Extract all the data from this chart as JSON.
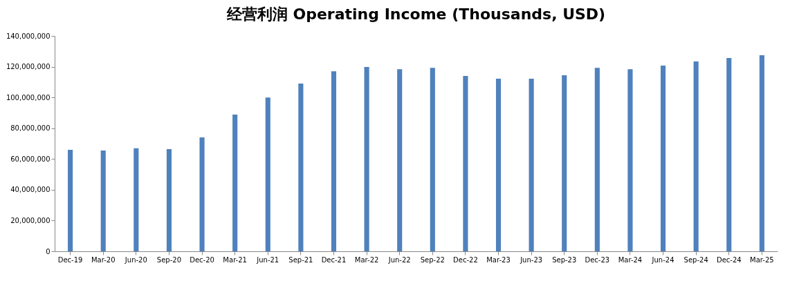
{
  "chart_data": {
    "type": "bar",
    "title": "经营利润 Operating Income (Thousands, USD)",
    "categories": [
      "Dec-19",
      "Mar-20",
      "Jun-20",
      "Sep-20",
      "Dec-20",
      "Mar-21",
      "Jun-21",
      "Sep-21",
      "Dec-21",
      "Mar-22",
      "Jun-22",
      "Sep-22",
      "Dec-22",
      "Mar-23",
      "Jun-23",
      "Sep-23",
      "Dec-23",
      "Mar-24",
      "Jun-24",
      "Sep-24",
      "Dec-24",
      "Mar-25"
    ],
    "values": [
      66000000,
      65500000,
      67000000,
      66400000,
      74000000,
      88800000,
      100000000,
      109000000,
      117000000,
      119800000,
      118400000,
      119300000,
      114000000,
      112200000,
      112200000,
      114400000,
      119300000,
      118400000,
      120700000,
      123400000,
      125600000,
      127400000
    ],
    "color": "#4f81bd",
    "ylim": [
      0,
      140000000
    ],
    "yticks": [
      0,
      {
        "value": 20000000,
        "label": "20,000,000"
      },
      {
        "value": 40000000,
        "label": "40,000,000"
      },
      {
        "value": 60000000,
        "label": "60,000,000"
      },
      {
        "value": 80000000,
        "label": "80,000,000"
      },
      {
        "value": 100000000,
        "label": "100,000,000"
      },
      {
        "value": 120000000,
        "label": "120,000,000"
      },
      {
        "value": 140000000,
        "label": "140,000,000"
      }
    ],
    "grid": false
  }
}
